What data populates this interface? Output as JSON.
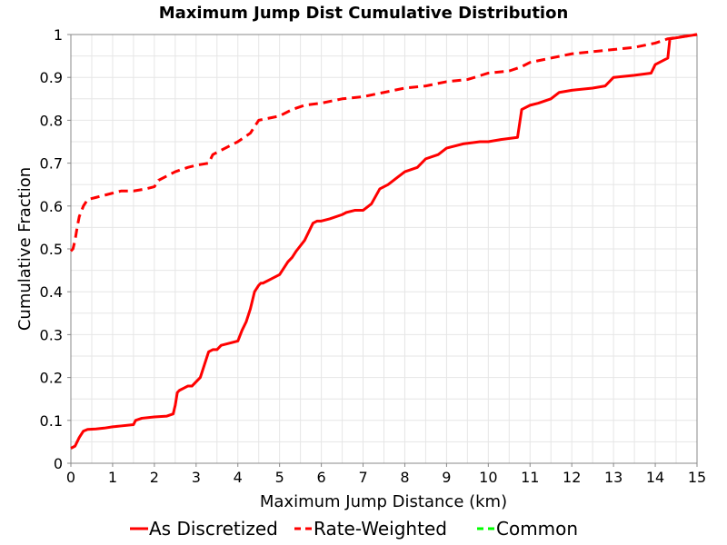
{
  "chart_data": {
    "type": "line",
    "title": "Maximum Jump Dist Cumulative Distribution",
    "xlabel": "Maximum Jump Distance (km)",
    "ylabel": "Cumulative Fraction",
    "xlim": [
      0,
      15
    ],
    "ylim": [
      0,
      1
    ],
    "xticks": [
      "0",
      "1",
      "2",
      "3",
      "4",
      "5",
      "6",
      "7",
      "8",
      "9",
      "10",
      "11",
      "12",
      "13",
      "14",
      "15"
    ],
    "yticks": [
      "0",
      "0.1",
      "0.2",
      "0.3",
      "0.4",
      "0.5",
      "0.6",
      "0.7",
      "0.8",
      "0.9",
      "1"
    ],
    "grid": true,
    "legend_position": "bottom",
    "series": [
      {
        "name": "As Discretized",
        "color": "#ff0000",
        "dash": "solid",
        "x": [
          0,
          0.1,
          0.2,
          0.3,
          0.4,
          0.6,
          0.8,
          1.0,
          1.2,
          1.5,
          1.55,
          1.7,
          2.0,
          2.3,
          2.45,
          2.5,
          2.55,
          2.6,
          2.7,
          2.8,
          2.9,
          3.1,
          3.2,
          3.3,
          3.4,
          3.5,
          3.6,
          3.8,
          4.0,
          4.1,
          4.2,
          4.3,
          4.4,
          4.5,
          4.55,
          4.6,
          4.8,
          5.0,
          5.2,
          5.3,
          5.4,
          5.6,
          5.8,
          5.9,
          6.0,
          6.2,
          6.5,
          6.6,
          6.8,
          7.0,
          7.2,
          7.4,
          7.6,
          7.8,
          8.0,
          8.3,
          8.5,
          8.8,
          9.0,
          9.4,
          9.8,
          10.0,
          10.3,
          10.7,
          10.8,
          11.0,
          11.2,
          11.5,
          11.7,
          12.0,
          12.5,
          12.8,
          13.0,
          13.5,
          13.9,
          14.0,
          14.3,
          14.35,
          15.0
        ],
        "y": [
          0.035,
          0.04,
          0.06,
          0.075,
          0.079,
          0.08,
          0.082,
          0.085,
          0.087,
          0.09,
          0.1,
          0.105,
          0.108,
          0.11,
          0.115,
          0.135,
          0.165,
          0.17,
          0.175,
          0.18,
          0.18,
          0.2,
          0.23,
          0.26,
          0.265,
          0.265,
          0.275,
          0.28,
          0.285,
          0.31,
          0.33,
          0.36,
          0.4,
          0.415,
          0.42,
          0.42,
          0.43,
          0.44,
          0.47,
          0.48,
          0.495,
          0.52,
          0.56,
          0.565,
          0.565,
          0.57,
          0.58,
          0.585,
          0.59,
          0.59,
          0.605,
          0.64,
          0.65,
          0.665,
          0.68,
          0.69,
          0.71,
          0.72,
          0.735,
          0.745,
          0.75,
          0.75,
          0.755,
          0.76,
          0.825,
          0.835,
          0.84,
          0.85,
          0.865,
          0.87,
          0.875,
          0.88,
          0.9,
          0.905,
          0.91,
          0.93,
          0.945,
          0.99,
          1.0
        ]
      },
      {
        "name": "Rate-Weighted",
        "color": "#ff0000",
        "dash": "dashed",
        "x": [
          0,
          0.05,
          0.1,
          0.15,
          0.2,
          0.3,
          0.4,
          0.6,
          0.8,
          1.0,
          1.2,
          1.5,
          1.8,
          2.0,
          2.1,
          2.3,
          2.5,
          2.8,
          3.0,
          3.3,
          3.4,
          3.6,
          3.8,
          4.0,
          4.3,
          4.5,
          5.0,
          5.3,
          5.6,
          6.0,
          6.5,
          7.0,
          7.5,
          8.0,
          8.5,
          9.0,
          9.5,
          10.0,
          10.5,
          10.8,
          11.0,
          11.5,
          12.0,
          12.5,
          13.0,
          13.5,
          14.0,
          14.3,
          15.0
        ],
        "y": [
          0.495,
          0.5,
          0.52,
          0.55,
          0.575,
          0.6,
          0.615,
          0.62,
          0.625,
          0.63,
          0.635,
          0.635,
          0.64,
          0.645,
          0.66,
          0.67,
          0.68,
          0.69,
          0.695,
          0.7,
          0.72,
          0.73,
          0.74,
          0.75,
          0.77,
          0.8,
          0.81,
          0.825,
          0.835,
          0.84,
          0.85,
          0.855,
          0.865,
          0.875,
          0.88,
          0.89,
          0.895,
          0.91,
          0.915,
          0.925,
          0.935,
          0.945,
          0.955,
          0.96,
          0.965,
          0.97,
          0.98,
          0.99,
          1.0
        ]
      },
      {
        "name": "Common",
        "color": "#00ff00",
        "dash": "dashed",
        "x": [],
        "y": []
      }
    ]
  }
}
